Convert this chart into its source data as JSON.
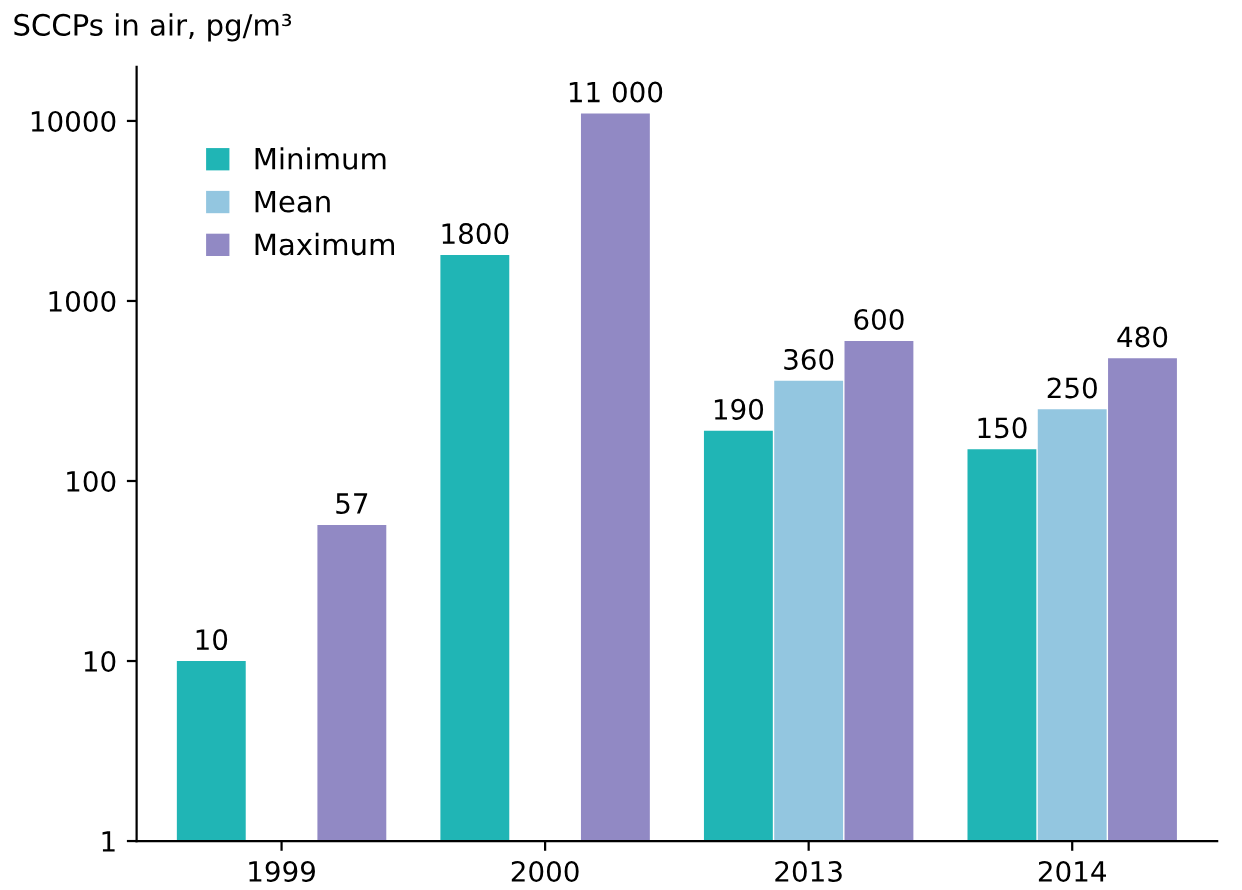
{
  "chart_data": {
    "type": "bar",
    "ylabel": "SCCPs in air, pg/m³",
    "categories": [
      "1999",
      "2000",
      "2013",
      "2014"
    ],
    "series": [
      {
        "name": "Minimum",
        "color": "#20b5b5",
        "values": [
          10,
          1800,
          190,
          150
        ],
        "value_labels": [
          "10",
          "1800",
          "190",
          "150"
        ]
      },
      {
        "name": "Mean",
        "color": "#93c6e0",
        "values": [
          null,
          null,
          360,
          250
        ],
        "value_labels": [
          null,
          null,
          "360",
          "250"
        ]
      },
      {
        "name": "Maximum",
        "color": "#9189c4",
        "values": [
          57,
          11000,
          600,
          480
        ],
        "value_labels": [
          "57",
          "11 000",
          "600",
          "480"
        ]
      }
    ],
    "log": "y",
    "ylim": [
      1,
      20000
    ],
    "yticks": [
      1,
      10,
      100,
      1000,
      10000
    ],
    "legend": "top left",
    "grid": false
  }
}
